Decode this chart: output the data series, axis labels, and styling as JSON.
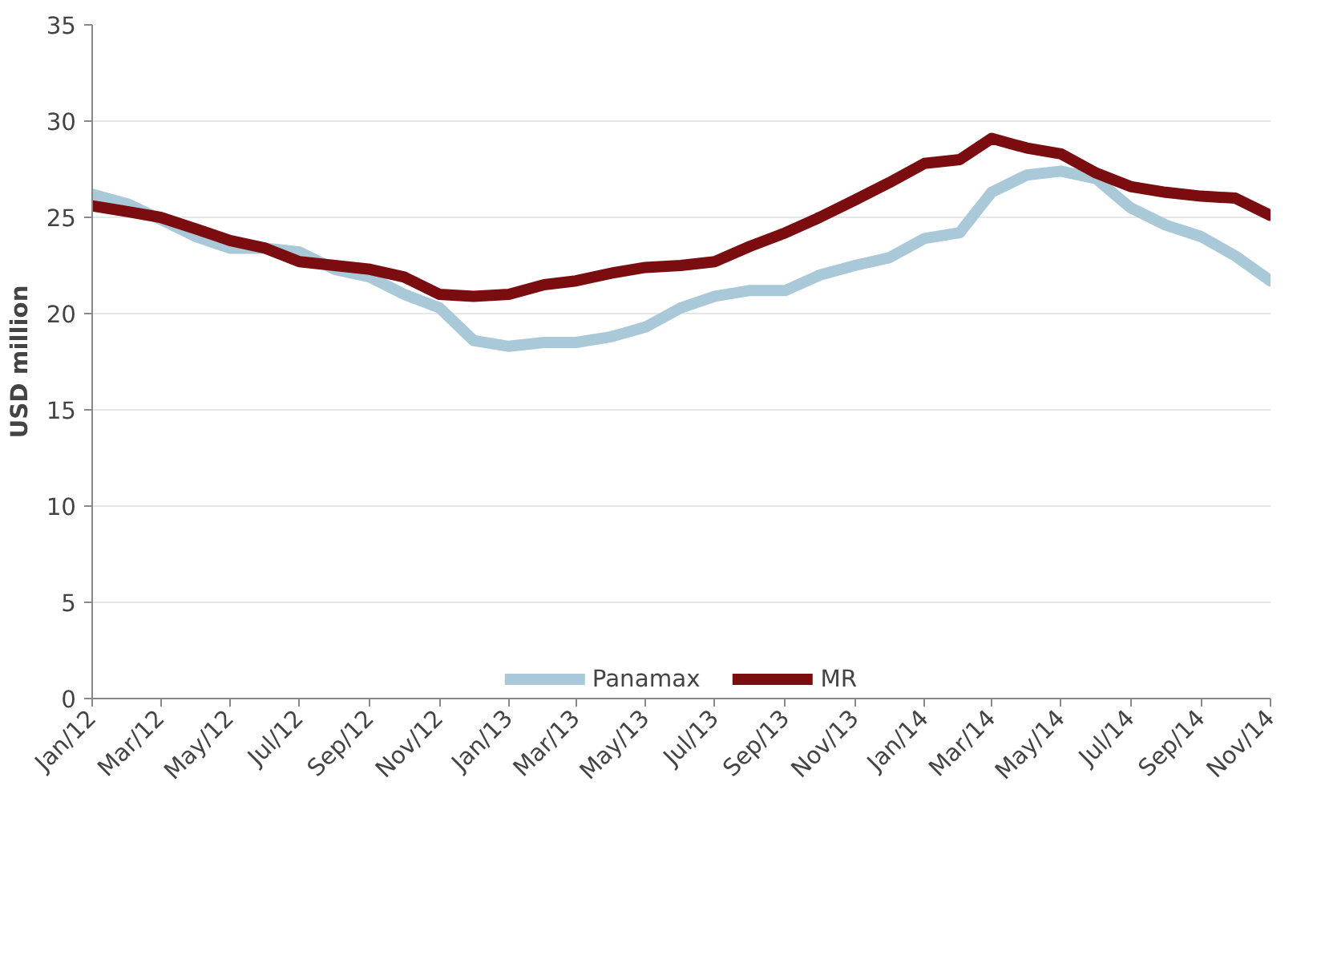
{
  "chart_data": {
    "type": "line",
    "ylabel": "USD million",
    "x": [
      "2012-01",
      "2012-02",
      "2012-03",
      "2012-04",
      "2012-05",
      "2012-06",
      "2012-07",
      "2012-08",
      "2012-09",
      "2012-10",
      "2012-11",
      "2012-12",
      "2013-01",
      "2013-02",
      "2013-03",
      "2013-04",
      "2013-05",
      "2013-06",
      "2013-07",
      "2013-08",
      "2013-09",
      "2013-10",
      "2013-11",
      "2013-12",
      "2014-01",
      "2014-02",
      "2014-03",
      "2014-04",
      "2014-05",
      "2014-06",
      "2014-07",
      "2014-08",
      "2014-09",
      "2014-10",
      "2014-11"
    ],
    "series": [
      {
        "name": "Panamax",
        "color": "#a9c9d9",
        "values": [
          26.2,
          25.7,
          24.9,
          24.0,
          23.4,
          23.4,
          23.2,
          22.3,
          21.9,
          21.0,
          20.3,
          18.6,
          18.3,
          18.5,
          18.5,
          18.8,
          19.3,
          20.3,
          20.9,
          21.2,
          21.2,
          22.0,
          22.5,
          22.9,
          23.9,
          24.2,
          26.3,
          27.2,
          27.4,
          27.0,
          25.5,
          24.6,
          24.0,
          23.0,
          21.7
        ]
      },
      {
        "name": "MR",
        "color": "#7b0c10",
        "values": [
          25.6,
          25.3,
          25.0,
          24.4,
          23.8,
          23.4,
          22.7,
          22.5,
          22.3,
          21.9,
          21.0,
          20.9,
          21.0,
          21.5,
          21.7,
          22.1,
          22.4,
          22.5,
          22.7,
          23.5,
          24.2,
          25.0,
          25.9,
          26.8,
          27.8,
          28.0,
          29.1,
          28.6,
          28.3,
          27.3,
          26.6,
          26.3,
          26.1,
          26.0,
          25.1
        ]
      }
    ],
    "xlim": [
      "2012-01",
      "2014-11"
    ],
    "xticks": [
      {
        "value": "2012-01",
        "label": "Jan/12"
      },
      {
        "value": "2012-03",
        "label": "Mar/12"
      },
      {
        "value": "2012-05",
        "label": "May/12"
      },
      {
        "value": "2012-07",
        "label": "Jul/12"
      },
      {
        "value": "2012-09",
        "label": "Sep/12"
      },
      {
        "value": "2012-11",
        "label": "Nov/12"
      },
      {
        "value": "2013-01",
        "label": "Jan/13"
      },
      {
        "value": "2013-03",
        "label": "Mar/13"
      },
      {
        "value": "2013-05",
        "label": "May/13"
      },
      {
        "value": "2013-07",
        "label": "Jul/13"
      },
      {
        "value": "2013-09",
        "label": "Sep/13"
      },
      {
        "value": "2013-11",
        "label": "Nov/13"
      },
      {
        "value": "2014-01",
        "label": "Jan/14"
      },
      {
        "value": "2014-03",
        "label": "Mar/14"
      },
      {
        "value": "2014-05",
        "label": "May/14"
      },
      {
        "value": "2014-07",
        "label": "Jul/14"
      },
      {
        "value": "2014-09",
        "label": "Sep/14"
      },
      {
        "value": "2014-11",
        "label": "Nov/14"
      }
    ],
    "ylim": [
      0,
      35
    ],
    "yticks": [
      0,
      5,
      10,
      15,
      20,
      25,
      30,
      35
    ],
    "grid": "y",
    "legend": "bottom",
    "line_style": "solid",
    "marker": "none"
  }
}
